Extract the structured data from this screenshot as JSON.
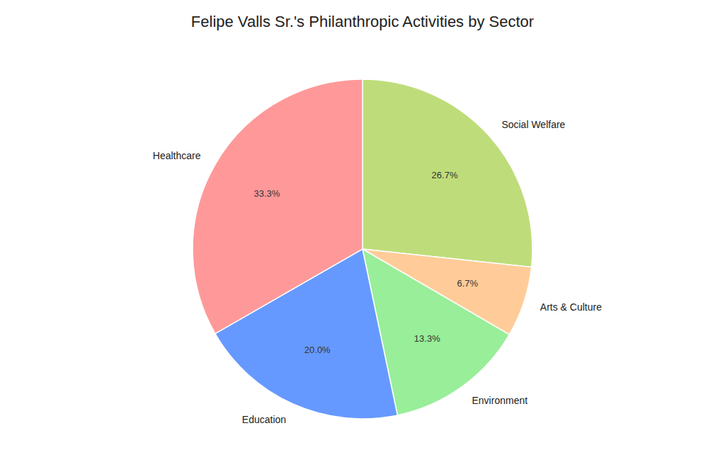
{
  "chart_data": {
    "type": "pie",
    "title": "Felipe Valls Sr.'s Philanthropic Activities by Sector",
    "categories": [
      "Social Welfare",
      "Arts & Culture",
      "Environment",
      "Education",
      "Healthcare"
    ],
    "values": [
      26.7,
      6.7,
      13.3,
      20.0,
      33.3
    ],
    "value_labels": [
      "26.7%",
      "6.7%",
      "13.3%",
      "20.0%",
      "33.3%"
    ],
    "colors": [
      "#BEDD7A",
      "#FFCC99",
      "#99EE99",
      "#6699FF",
      "#FF9999"
    ],
    "data_labels": true
  }
}
